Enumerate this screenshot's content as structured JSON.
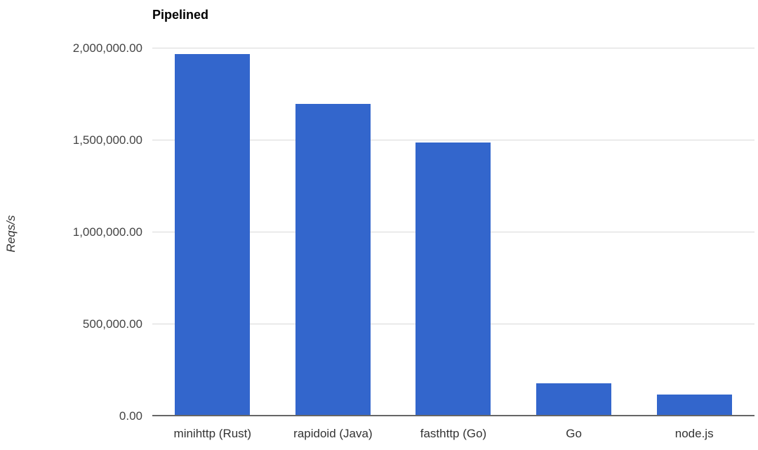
{
  "chart_data": {
    "type": "bar",
    "title": "Pipelined",
    "xlabel": "",
    "ylabel": "Reqs/s",
    "categories": [
      "minihttp (Rust)",
      "rapidoid (Java)",
      "fasthttp (Go)",
      "Go",
      "node.js"
    ],
    "values": [
      1970000,
      1700000,
      1490000,
      180000,
      120000
    ],
    "ylim": [
      0,
      2000000
    ],
    "yticks": [
      {
        "value": 0,
        "label": "0.00"
      },
      {
        "value": 500000,
        "label": "500,000.00"
      },
      {
        "value": 1000000,
        "label": "1,000,000.00"
      },
      {
        "value": 1500000,
        "label": "1,500,000.00"
      },
      {
        "value": 2000000,
        "label": "2,000,000.00"
      }
    ],
    "grid": true,
    "legend": "none",
    "colors": {
      "bar": "#3366CC",
      "gridline": "#D9D9D9",
      "axis_baseline": "#666666",
      "tick_label": "#444444",
      "category_label": "#333333",
      "title": "#000000",
      "ylabel": "#333333",
      "background": "#FFFFFF"
    }
  }
}
